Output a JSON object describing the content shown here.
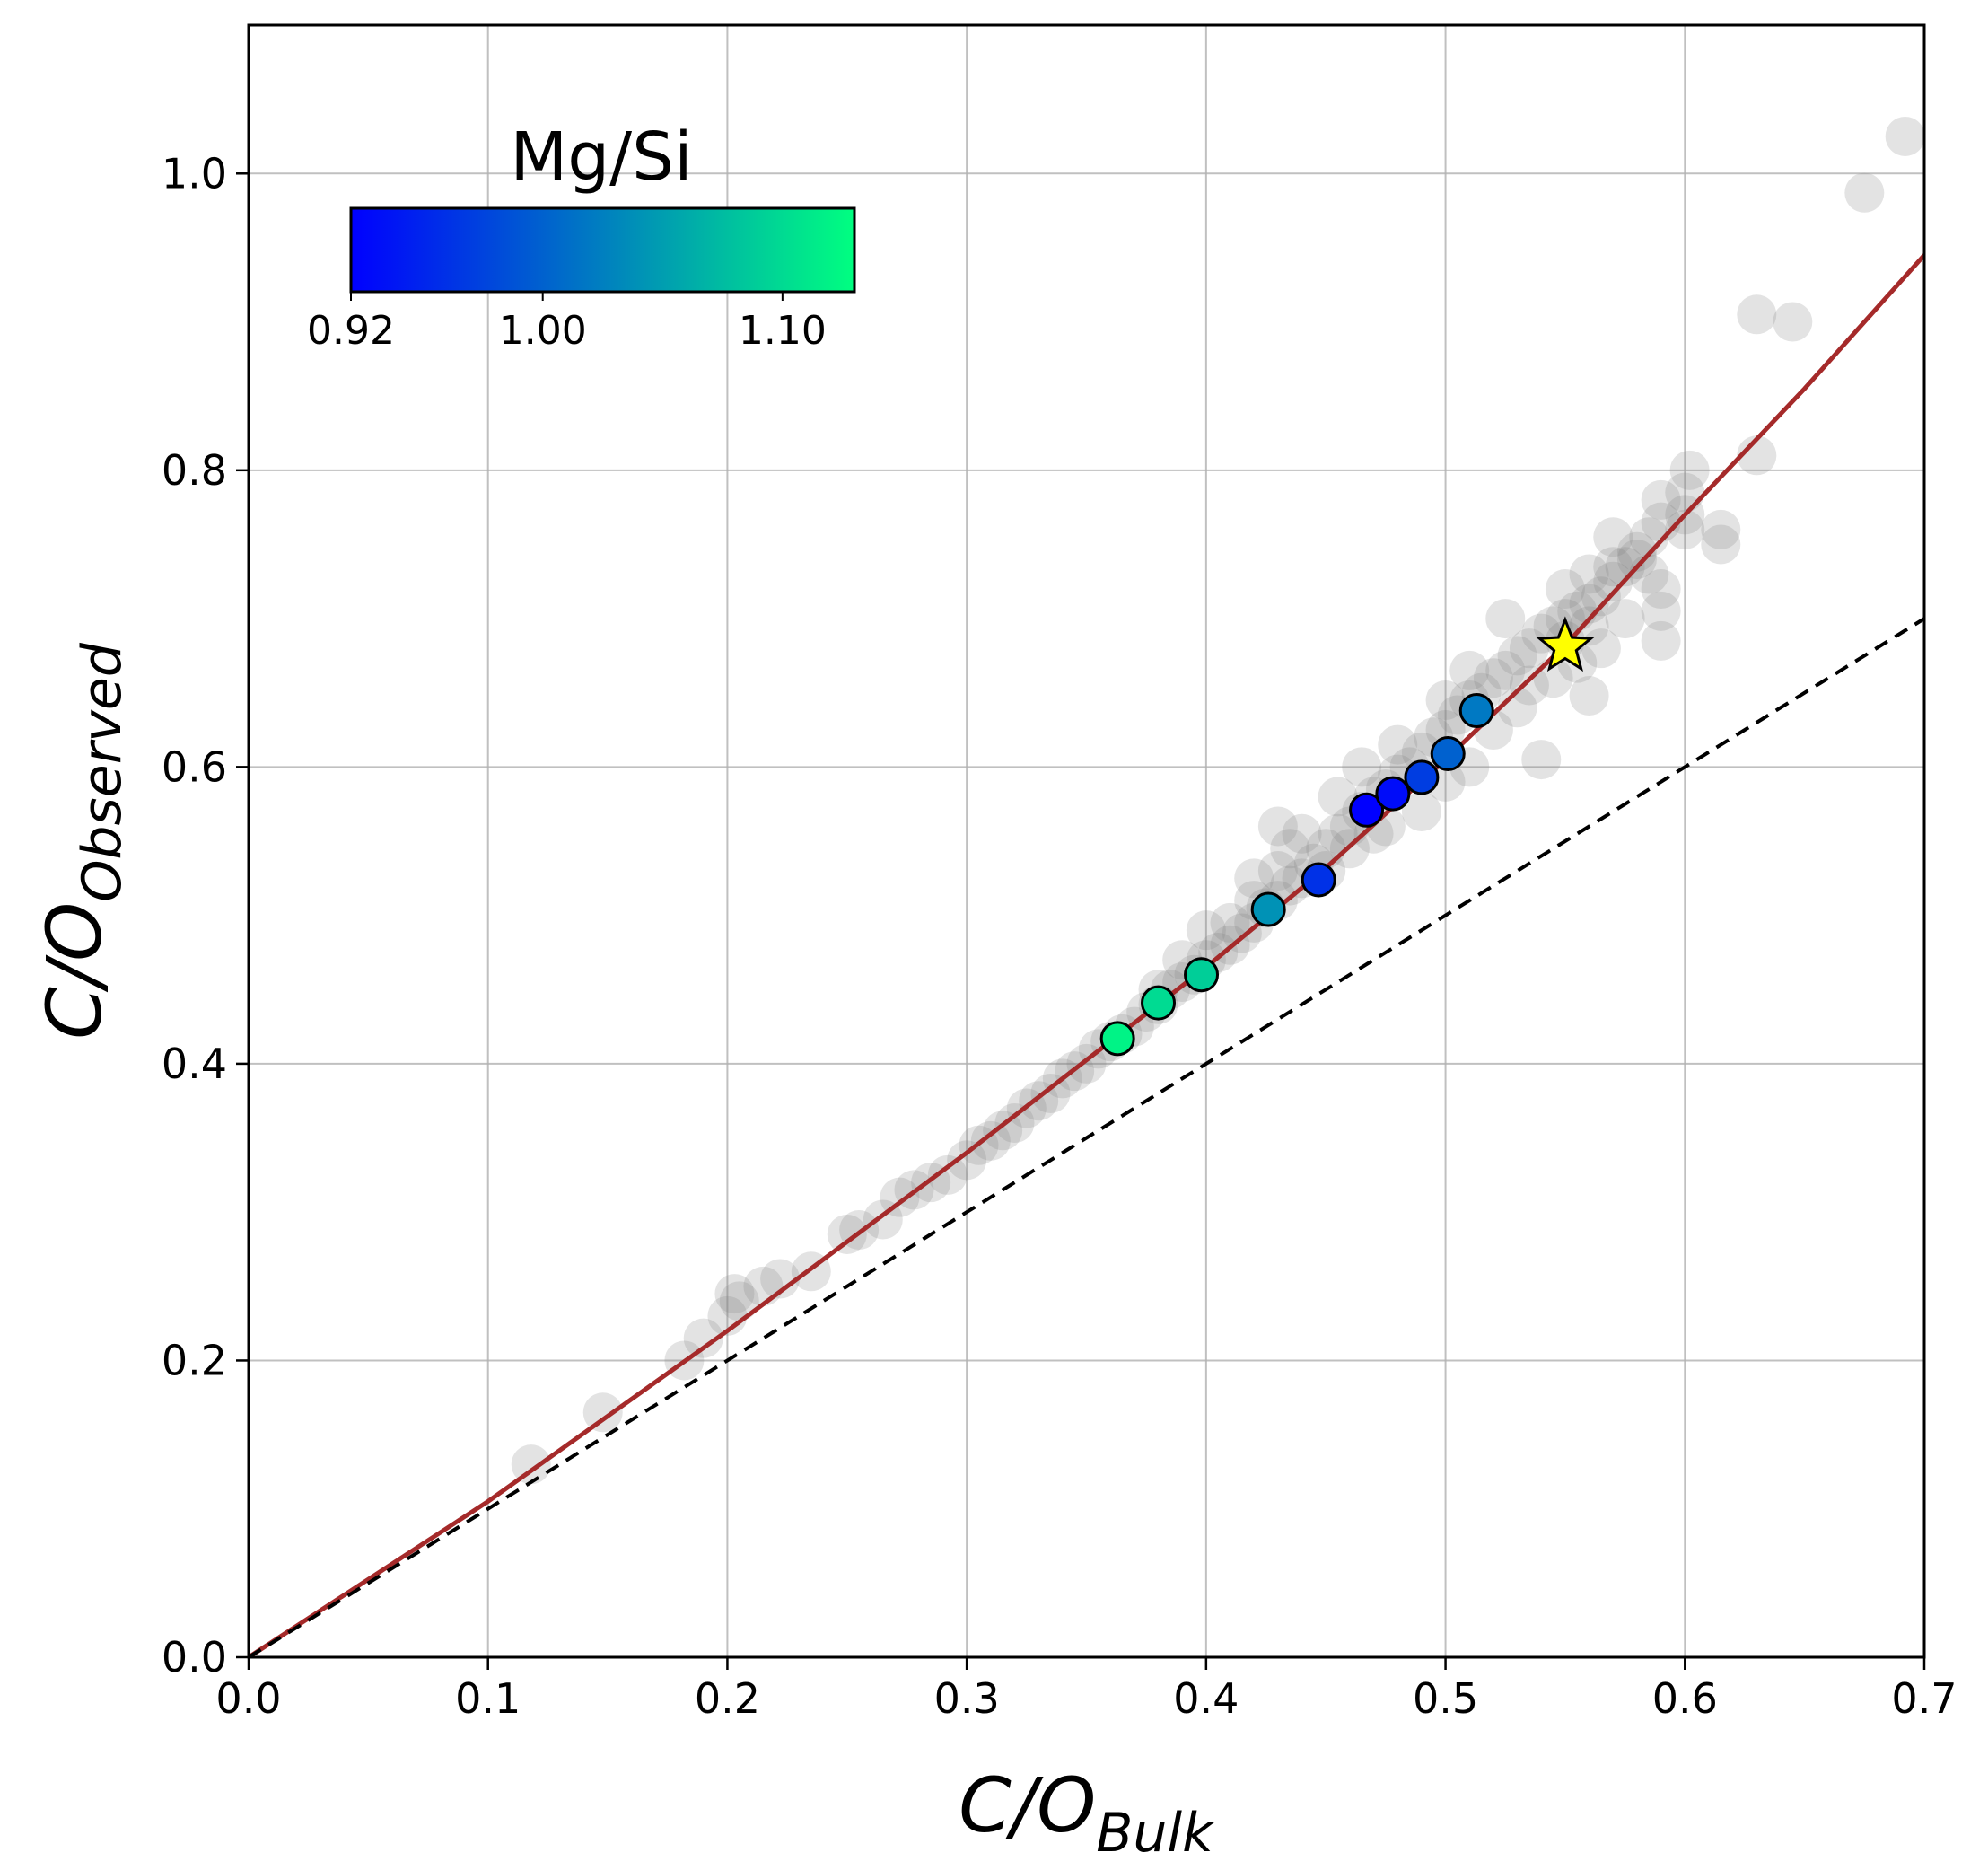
{
  "chart_data": {
    "type": "scatter",
    "xlabel": {
      "main": "C/O",
      "sub": "Bulk"
    },
    "ylabel": {
      "main": "C/O",
      "sub": "Observed"
    },
    "xlim": [
      0.0,
      0.7
    ],
    "ylim": [
      0.0,
      1.1
    ],
    "xticks": [
      0.0,
      0.1,
      0.2,
      0.3,
      0.4,
      0.5,
      0.6,
      0.7
    ],
    "xtick_labels": [
      "0.0",
      "0.1",
      "0.2",
      "0.3",
      "0.4",
      "0.5",
      "0.6",
      "0.7"
    ],
    "yticks": [
      0.0,
      0.2,
      0.4,
      0.6,
      0.8,
      1.0
    ],
    "ytick_labels": [
      "0.0",
      "0.2",
      "0.4",
      "0.6",
      "0.8",
      "1.0"
    ],
    "grid": true,
    "colorbar": {
      "title": "Mg/Si",
      "range": [
        0.92,
        1.13
      ],
      "ticks": [
        0.92,
        1.0,
        1.1
      ],
      "tick_labels": [
        "0.92",
        "1.00",
        "1.10"
      ],
      "colors": [
        "#0000ff",
        "#00ff80"
      ],
      "placement": "upper-left"
    },
    "series": [
      {
        "kind": "scatter",
        "color": "#808080",
        "opacity": 0.22,
        "points": [
          [
            0.118,
            0.13
          ],
          [
            0.148,
            0.165
          ],
          [
            0.182,
            0.2
          ],
          [
            0.19,
            0.215
          ],
          [
            0.2,
            0.23
          ],
          [
            0.203,
            0.245
          ],
          [
            0.205,
            0.24
          ],
          [
            0.215,
            0.25
          ],
          [
            0.222,
            0.255
          ],
          [
            0.235,
            0.26
          ],
          [
            0.25,
            0.285
          ],
          [
            0.255,
            0.288
          ],
          [
            0.265,
            0.295
          ],
          [
            0.272,
            0.31
          ],
          [
            0.278,
            0.315
          ],
          [
            0.285,
            0.32
          ],
          [
            0.292,
            0.325
          ],
          [
            0.3,
            0.335
          ],
          [
            0.305,
            0.345
          ],
          [
            0.31,
            0.348
          ],
          [
            0.315,
            0.355
          ],
          [
            0.32,
            0.36
          ],
          [
            0.325,
            0.37
          ],
          [
            0.33,
            0.375
          ],
          [
            0.335,
            0.38
          ],
          [
            0.34,
            0.39
          ],
          [
            0.345,
            0.395
          ],
          [
            0.35,
            0.4
          ],
          [
            0.355,
            0.41
          ],
          [
            0.36,
            0.415
          ],
          [
            0.365,
            0.42
          ],
          [
            0.37,
            0.425
          ],
          [
            0.375,
            0.435
          ],
          [
            0.38,
            0.44
          ],
          [
            0.385,
            0.45
          ],
          [
            0.39,
            0.455
          ],
          [
            0.395,
            0.46
          ],
          [
            0.4,
            0.47
          ],
          [
            0.405,
            0.475
          ],
          [
            0.41,
            0.48
          ],
          [
            0.415,
            0.488
          ],
          [
            0.42,
            0.495
          ],
          [
            0.425,
            0.505
          ],
          [
            0.43,
            0.51
          ],
          [
            0.435,
            0.52
          ],
          [
            0.44,
            0.525
          ],
          [
            0.445,
            0.535
          ],
          [
            0.45,
            0.545
          ],
          [
            0.455,
            0.555
          ],
          [
            0.46,
            0.56
          ],
          [
            0.465,
            0.57
          ],
          [
            0.47,
            0.58
          ],
          [
            0.475,
            0.585
          ],
          [
            0.48,
            0.595
          ],
          [
            0.485,
            0.6
          ],
          [
            0.49,
            0.61
          ],
          [
            0.495,
            0.62
          ],
          [
            0.5,
            0.625
          ],
          [
            0.505,
            0.635
          ],
          [
            0.51,
            0.645
          ],
          [
            0.515,
            0.65
          ],
          [
            0.52,
            0.66
          ],
          [
            0.525,
            0.665
          ],
          [
            0.53,
            0.675
          ],
          [
            0.535,
            0.68
          ],
          [
            0.54,
            0.69
          ],
          [
            0.545,
            0.695
          ],
          [
            0.55,
            0.7
          ],
          [
            0.555,
            0.705
          ],
          [
            0.56,
            0.71
          ],
          [
            0.565,
            0.715
          ],
          [
            0.57,
            0.725
          ],
          [
            0.575,
            0.735
          ],
          [
            0.58,
            0.745
          ],
          [
            0.585,
            0.755
          ],
          [
            0.59,
            0.765
          ],
          [
            0.6,
            0.785
          ],
          [
            0.602,
            0.8
          ],
          [
            0.43,
            0.53
          ],
          [
            0.44,
            0.555
          ],
          [
            0.455,
            0.58
          ],
          [
            0.465,
            0.6
          ],
          [
            0.48,
            0.615
          ],
          [
            0.5,
            0.645
          ],
          [
            0.51,
            0.665
          ],
          [
            0.525,
            0.7
          ],
          [
            0.55,
            0.72
          ],
          [
            0.56,
            0.73
          ],
          [
            0.57,
            0.755
          ],
          [
            0.59,
            0.78
          ],
          [
            0.45,
            0.53
          ],
          [
            0.47,
            0.555
          ],
          [
            0.49,
            0.57
          ],
          [
            0.51,
            0.6
          ],
          [
            0.53,
            0.64
          ],
          [
            0.545,
            0.66
          ],
          [
            0.555,
            0.67
          ],
          [
            0.565,
            0.68
          ],
          [
            0.575,
            0.7
          ],
          [
            0.59,
            0.72
          ],
          [
            0.6,
            0.76
          ],
          [
            0.6,
            0.77
          ],
          [
            0.54,
            0.605
          ],
          [
            0.56,
            0.648
          ],
          [
            0.59,
            0.685
          ],
          [
            0.59,
            0.705
          ],
          [
            0.615,
            0.76
          ],
          [
            0.615,
            0.75
          ],
          [
            0.63,
            0.81
          ],
          [
            0.63,
            0.905
          ],
          [
            0.645,
            0.9
          ],
          [
            0.675,
            0.987
          ],
          [
            0.692,
            1.025
          ],
          [
            0.38,
            0.45
          ],
          [
            0.39,
            0.47
          ],
          [
            0.4,
            0.49
          ],
          [
            0.41,
            0.495
          ],
          [
            0.42,
            0.51
          ],
          [
            0.435,
            0.545
          ],
          [
            0.42,
            0.525
          ],
          [
            0.43,
            0.56
          ],
          [
            0.46,
            0.545
          ],
          [
            0.475,
            0.56
          ],
          [
            0.5,
            0.59
          ],
          [
            0.52,
            0.625
          ],
          [
            0.535,
            0.655
          ],
          [
            0.55,
            0.685
          ],
          [
            0.56,
            0.695
          ],
          [
            0.57,
            0.735
          ],
          [
            0.58,
            0.74
          ],
          [
            0.585,
            0.73
          ]
        ]
      },
      {
        "kind": "scatter",
        "colormap_by": "Mg/Si",
        "marker": "circle",
        "edge": "#000000",
        "points": [
          {
            "x": 0.363,
            "y": 0.417,
            "mgsi": 1.12
          },
          {
            "x": 0.38,
            "y": 0.441,
            "mgsi": 1.1
          },
          {
            "x": 0.398,
            "y": 0.46,
            "mgsi": 1.09
          },
          {
            "x": 0.426,
            "y": 0.504,
            "mgsi": 1.04
          },
          {
            "x": 0.447,
            "y": 0.524,
            "mgsi": 0.96
          },
          {
            "x": 0.467,
            "y": 0.571,
            "mgsi": 0.92
          },
          {
            "x": 0.478,
            "y": 0.582,
            "mgsi": 0.93
          },
          {
            "x": 0.49,
            "y": 0.593,
            "mgsi": 0.97
          },
          {
            "x": 0.501,
            "y": 0.609,
            "mgsi": 1.0
          },
          {
            "x": 0.513,
            "y": 0.638,
            "mgsi": 1.02
          }
        ]
      },
      {
        "kind": "marker",
        "marker": "star",
        "color": "#ffff00",
        "edge": "#000000",
        "points": [
          [
            0.55,
            0.681
          ]
        ]
      },
      {
        "kind": "line",
        "style": "solid",
        "color": "#a52a2a",
        "x": [
          0.0,
          0.1,
          0.2,
          0.3,
          0.4,
          0.45,
          0.5,
          0.55,
          0.6,
          0.65,
          0.7
        ],
        "y": [
          0.0,
          0.105,
          0.22,
          0.34,
          0.465,
          0.532,
          0.605,
          0.682,
          0.77,
          0.855,
          0.945
        ]
      },
      {
        "kind": "line",
        "style": "dashed",
        "color": "#000000",
        "x": [
          0.0,
          0.7
        ],
        "y": [
          0.0,
          0.7
        ]
      }
    ]
  }
}
